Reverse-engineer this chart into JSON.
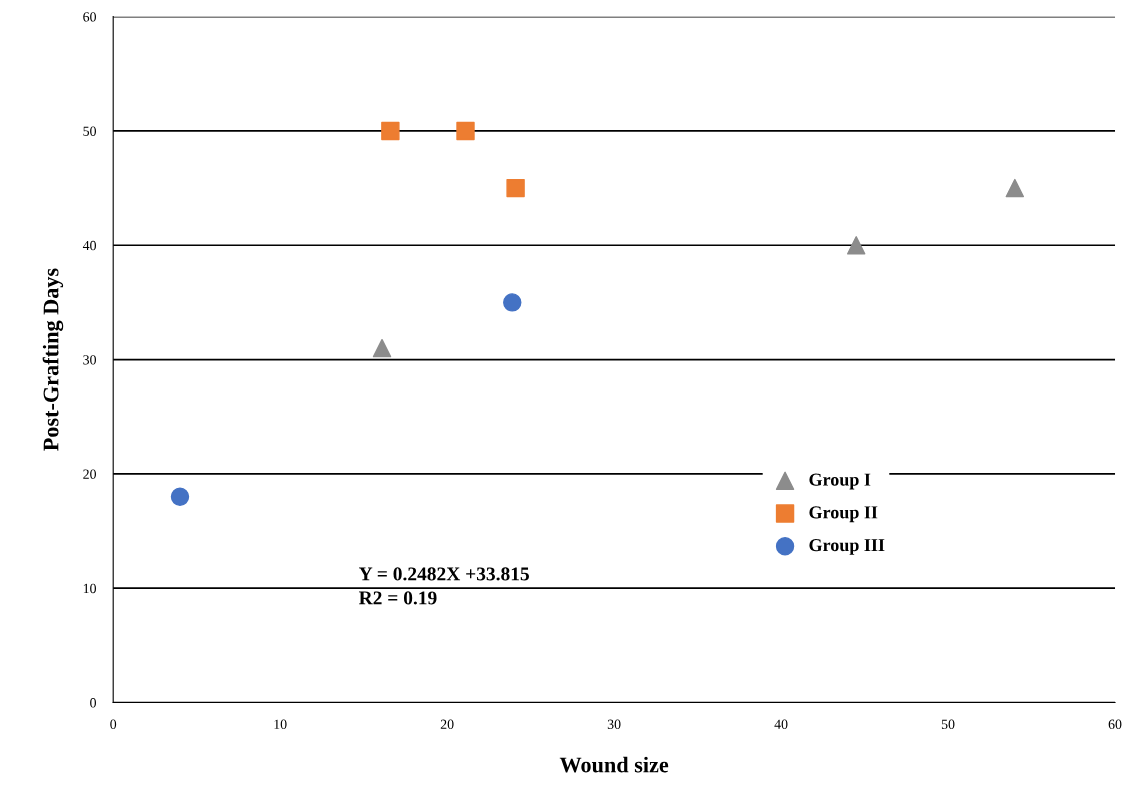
{
  "chart_data": {
    "type": "scatter",
    "xlabel": "Wound size",
    "ylabel": "Post-Grafting Days",
    "xlim": [
      0,
      60
    ],
    "xticks": [
      0,
      10,
      20,
      30,
      40,
      50,
      60
    ],
    "ylim": [
      0,
      60
    ],
    "yticks": [
      0,
      10,
      20,
      30,
      40,
      50,
      60
    ],
    "grid": "y",
    "legend": "center right",
    "series": [
      {
        "name": "Group I",
        "color": "#8c8c8c",
        "marker": "triangle",
        "x": [
          16.1,
          44.5,
          54.0
        ],
        "values": [
          31,
          40,
          45
        ]
      },
      {
        "name": "Group II",
        "color": "#ed7d31",
        "marker": "square",
        "x": [
          16.6,
          21.1,
          24.1
        ],
        "values": [
          50,
          50,
          45
        ]
      },
      {
        "name": "Group III",
        "color": "#4472c4",
        "marker": "circle",
        "x": [
          4.0,
          23.9
        ],
        "values": [
          18,
          35
        ]
      }
    ],
    "annotations": [
      "Y = 0.2482X +33.815",
      "R2 = 0.19"
    ]
  }
}
